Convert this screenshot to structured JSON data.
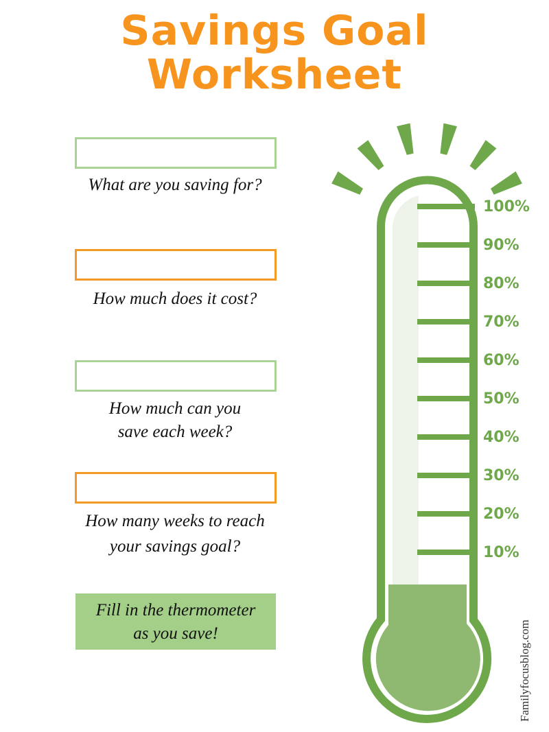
{
  "header": {
    "title_lines": [
      "Savings Goal",
      "Worksheet"
    ]
  },
  "fields": [
    {
      "label_lines": [
        "What are you saving for?"
      ]
    },
    {
      "label_lines": [
        "How much does it cost?"
      ]
    },
    {
      "label_lines": [
        "How much can you",
        "save each week?"
      ]
    },
    {
      "label_lines": [
        "How many weeks to reach",
        "your savings goal?"
      ]
    }
  ],
  "note": {
    "lines": [
      "Fill in the thermometer",
      "as you save!"
    ]
  },
  "thermometer": {
    "ticks": [
      "100%",
      "90%",
      "80%",
      "70%",
      "60%",
      "50%",
      "40%",
      "30%",
      "20%",
      "10%"
    ]
  },
  "footer": {
    "credit": "Familyfocusblog.com"
  }
}
